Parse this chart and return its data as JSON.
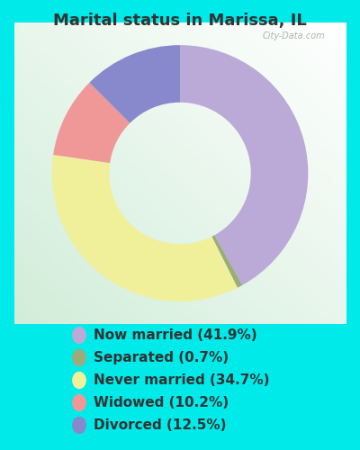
{
  "title": "Marital status in Marissa, IL",
  "title_fontsize": 13,
  "slices": [
    41.9,
    0.7,
    34.7,
    10.2,
    12.5
  ],
  "labels": [
    "Now married (41.9%)",
    "Separated (0.7%)",
    "Never married (34.7%)",
    "Widowed (10.2%)",
    "Divorced (12.5%)"
  ],
  "colors": [
    "#bbaad8",
    "#9aac7a",
    "#f0f09a",
    "#f09898",
    "#8888cc"
  ],
  "legend_colors": [
    "#bbaad8",
    "#9aac7a",
    "#f0f09a",
    "#f09898",
    "#8888cc"
  ],
  "bg_outer": "#00eaea",
  "watermark": "City-Data.com",
  "donut_width": 0.38,
  "startangle": 90,
  "legend_fontsize": 11,
  "title_color": "#333333"
}
